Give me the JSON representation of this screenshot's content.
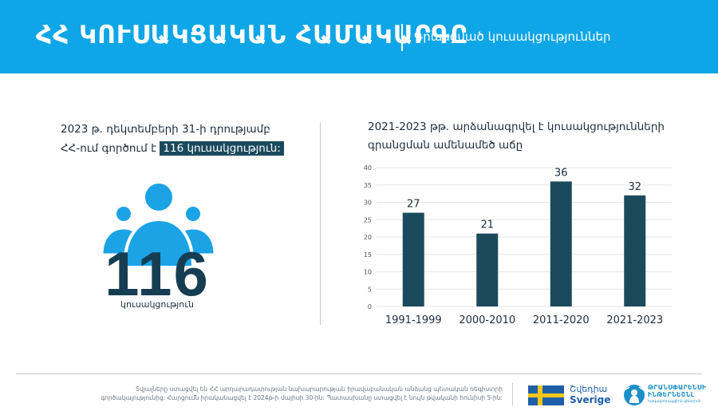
{
  "header": {
    "title": "ՀՀ ԿՈՒՍԱԿՑԱԿԱՆ ՀԱՄԱԿԱՐԳԸ",
    "subtitle": "Գրանցված կուսակցություններ"
  },
  "summary": {
    "line1": "2023 թ. դեկտեմբերի 31-ի դրությամբ",
    "line2_prefix": "ՀՀ-ում գործում է",
    "highlight": "116 կուսակցություն:",
    "big_number": "116",
    "big_caption": "կուսակցություն",
    "icon": "people-group-icon"
  },
  "chart_data": {
    "type": "bar",
    "title_lines": [
      "2021-2023 թթ. արձանագրվել է կուսակցությունների",
      "գրանցման ամենամեծ աճը"
    ],
    "categories": [
      "1991-1999",
      "2000-2010",
      "2011-2020",
      "2021-2023"
    ],
    "values": [
      27,
      21,
      36,
      32
    ],
    "ylim": [
      0,
      40
    ],
    "yticks": [
      0,
      5,
      10,
      15,
      20,
      25,
      30,
      35,
      40
    ],
    "grid": true,
    "bar_color": "#1b4a5c",
    "xlabel": "",
    "ylabel": ""
  },
  "footer": {
    "note": "Տվյալները ստացվել են ՀՀ արդարադատության նախարարության իրավաբանական անձանց պետական ռեգիստրի գործակալությունից: Հարցումն իրականացվել է 2024թ-ի մայիսի 30-ին: Պատասխանը ստացվել է նույն թվականի հունիսի 5-ին:",
    "sweden_name": "Շվեդիա",
    "sweden_latin": "Sverige",
    "ti_name": "ԹՐԱՆՍՓԱՐԵՆՍԻ ԻՆԹԵՐՆԵՇՆԼ",
    "ti_sub": "հակակոռուպցիոն կենտրոն"
  },
  "colors": {
    "header_bg": "#0ea6e6",
    "accent_dark": "#1b4a5c",
    "icon_blue": "#1ba3e6"
  }
}
